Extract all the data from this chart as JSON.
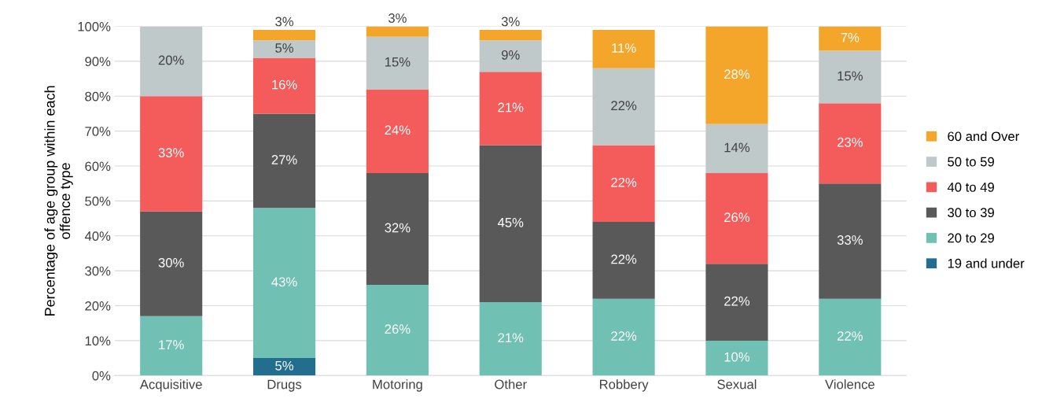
{
  "chart_data": {
    "type": "bar",
    "stacked": true,
    "ylabel": "Percentage of age group within each offence type",
    "categories": [
      "Acquisitive",
      "Drugs",
      "Motoring",
      "Other",
      "Robbery",
      "Sexual",
      "Violence"
    ],
    "series": [
      {
        "name": "19 and under",
        "color": "#236e8f",
        "values": [
          null,
          5,
          null,
          null,
          null,
          null,
          null
        ],
        "value_labels": [
          null,
          "5%",
          null,
          null,
          null,
          null,
          null
        ]
      },
      {
        "name": "20 to 29",
        "color": "#70c1b3",
        "values": [
          17,
          43,
          26,
          21,
          22,
          10,
          22
        ],
        "value_labels": [
          "17%",
          "43%",
          "26%",
          "21%",
          "22%",
          "10%",
          "22%"
        ]
      },
      {
        "name": "30 to 39",
        "color": "#595959",
        "values": [
          30,
          27,
          32,
          45,
          22,
          22,
          33
        ],
        "value_labels": [
          "30%",
          "27%",
          "32%",
          "45%",
          "22%",
          "22%",
          "33%"
        ]
      },
      {
        "name": "40 to 49",
        "color": "#f45b5b",
        "values": [
          33,
          16,
          24,
          21,
          22,
          26,
          23
        ],
        "value_labels": [
          "33%",
          "16%",
          "24%",
          "21%",
          "22%",
          "26%",
          "23%"
        ]
      },
      {
        "name": "50 to 59",
        "color": "#bfc9ca",
        "values": [
          20,
          5,
          15,
          9,
          22,
          14,
          15
        ],
        "value_labels": [
          "20%",
          "5%",
          "15%",
          "9%",
          "22%",
          "14%",
          "15%"
        ]
      },
      {
        "name": "60 and Over",
        "color": "#f4a62a",
        "values": [
          null,
          3,
          3,
          3,
          11,
          28,
          7
        ],
        "value_labels": [
          null,
          "3%",
          "3%",
          "3%",
          "11%",
          "28%",
          "7%"
        ]
      }
    ],
    "ylim": [
      0,
      100
    ],
    "yticks": [
      {
        "value": 0,
        "label": "0%"
      },
      {
        "value": 10,
        "label": "10%"
      },
      {
        "value": 20,
        "label": "20%"
      },
      {
        "value": 30,
        "label": "30%"
      },
      {
        "value": 40,
        "label": "40%"
      },
      {
        "value": 50,
        "label": "50%"
      },
      {
        "value": 60,
        "label": "60%"
      },
      {
        "value": 70,
        "label": "70%"
      },
      {
        "value": 80,
        "label": "80%"
      },
      {
        "value": 90,
        "label": "90%"
      },
      {
        "value": 100,
        "label": "100%"
      }
    ],
    "grid": "y",
    "legend": "right"
  }
}
